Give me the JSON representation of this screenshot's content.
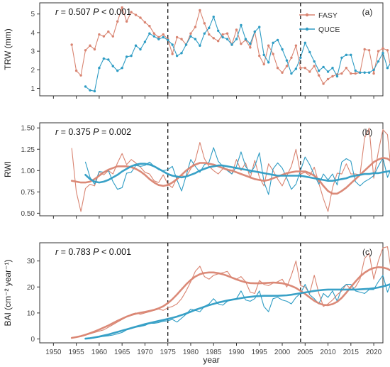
{
  "colors": {
    "FASY": "#D98471",
    "QUCE": "#2E9CC4"
  },
  "legend": [
    {
      "name": "FASY",
      "color": "#D98471"
    },
    {
      "name": "QUCE",
      "color": "#2E9CC4"
    }
  ],
  "xaxis": {
    "label": "year",
    "ticks": [
      "1950",
      "1955",
      "1960",
      "1965",
      "1970",
      "1975",
      "1980",
      "1985",
      "1990",
      "1995",
      "2000",
      "2005",
      "2010",
      "2015",
      "2020"
    ]
  },
  "chart_data": [
    {
      "type": "line",
      "panel": "(a)",
      "ylabel": "TRW (mm)",
      "stat": {
        "r": "0.507",
        "p": "< 0.001"
      },
      "xlim": [
        1947,
        2022
      ],
      "ylim": [
        0.6,
        5.6
      ],
      "yticks": [
        "1",
        "2",
        "3",
        "4",
        "5"
      ],
      "vlines": [
        1975,
        2004
      ],
      "x_start": {
        "FASY": 1954,
        "QUCE": 1957
      },
      "series": [
        {
          "name": "FASY",
          "values": [
            3.35,
            1.95,
            1.7,
            3.05,
            3.3,
            3.1,
            3.9,
            3.8,
            4.05,
            3.8,
            4.6,
            5.35,
            4.6,
            5.1,
            4.95,
            4.8,
            4.55,
            4.35,
            3.95,
            3.75,
            3.9,
            3.65,
            2.85,
            3.75,
            3.65,
            3.35,
            3.95,
            4.3,
            5.2,
            4.5,
            3.9,
            3.7,
            3.55,
            3.9,
            3.95,
            3.35,
            4.15,
            3.4,
            3.6,
            3.2,
            4.05,
            2.75,
            2.3,
            3.3,
            2.85,
            2.1,
            1.85,
            2.2,
            2.65,
            3.3,
            2.1,
            2.1,
            1.9,
            2.2,
            1.7,
            1.25,
            1.5,
            1.65,
            1.75,
            1.8,
            2.1,
            1.8,
            1.8,
            1.85,
            3.1,
            3.05,
            1.8,
            3.0,
            3.15,
            3.05,
            1.7,
            1.7,
            1.95
          ]
        },
        {
          "name": "QUCE",
          "values": [
            1.1,
            0.9,
            0.85,
            2.1,
            2.6,
            2.55,
            2.2,
            1.95,
            2.1,
            2.7,
            2.75,
            3.3,
            3.1,
            3.5,
            3.95,
            3.8,
            3.65,
            3.75,
            3.6,
            3.35,
            2.75,
            2.9,
            3.35,
            3.8,
            3.65,
            3.3,
            3.95,
            4.25,
            4.85,
            4.1,
            3.75,
            3.65,
            3.35,
            3.65,
            4.4,
            3.65,
            3.4,
            4.05,
            4.3,
            2.8,
            2.4,
            3.45,
            3.6,
            3.1,
            2.5,
            1.8,
            2.05,
            2.65,
            3.45,
            2.95,
            2.45,
            1.95,
            2.15,
            1.9,
            2.1,
            1.65,
            2.65,
            2.8,
            2.8,
            1.95,
            1.85,
            1.85,
            1.85,
            2.0,
            2.45,
            2.9,
            2.1,
            2.5,
            2.2,
            1.85,
            2.75,
            2.5,
            2.8,
            2.65,
            2.45,
            2.75
          ]
        }
      ]
    },
    {
      "type": "line",
      "panel": "(b)",
      "ylabel": "RWI",
      "stat": {
        "r": "0.375",
        "p": "= 0.002"
      },
      "xlim": [
        1947,
        2022
      ],
      "ylim": [
        0.47,
        1.56
      ],
      "yticks": [
        "0.50",
        "0.75",
        "1.00",
        "1.25",
        "1.50"
      ],
      "vlines": [
        1975,
        2004
      ],
      "x_start": {
        "FASY": 1954,
        "QUCE": 1957
      },
      "series": [
        {
          "name": "FASY",
          "values": [
            1.26,
            0.75,
            0.52,
            0.79,
            0.84,
            0.82,
            0.98,
            0.95,
            1.0,
            0.96,
            1.09,
            1.2,
            1.07,
            1.13,
            1.09,
            1.04,
            0.98,
            0.96,
            0.88,
            0.86,
            0.95,
            0.84,
            0.8,
            0.92,
            0.94,
            0.93,
            1.02,
            1.12,
            1.33,
            1.14,
            1.05,
            1.0,
            0.96,
            1.02,
            1.02,
            0.96,
            1.13,
            1.0,
            1.09,
            0.91,
            1.12,
            0.92,
            0.82,
            1.08,
            1.0,
            0.9,
            0.82,
            0.94,
            1.05,
            1.25,
            0.96,
            0.98,
            0.94,
            1.04,
            0.85,
            0.67,
            0.52,
            0.8,
            0.97,
            0.96,
            1.08,
            0.96,
            0.96,
            0.95,
            1.38,
            1.5,
            0.91,
            1.22,
            1.48,
            1.42,
            0.88,
            0.93,
            0.84
          ]
        },
        {
          "name": "QUCE",
          "values": [
            1.1,
            0.92,
            0.84,
            0.99,
            0.98,
            1.0,
            0.87,
            0.78,
            0.8,
            0.97,
            0.98,
            1.06,
            1.05,
            1.06,
            1.1,
            1.05,
            1.01,
            1.0,
            1.01,
            1.05,
            0.89,
            0.76,
            0.94,
            1.13,
            1.05,
            0.98,
            1.07,
            1.1,
            1.27,
            1.11,
            1.05,
            1.0,
            0.96,
            1.05,
            1.22,
            1.05,
            0.97,
            1.05,
            1.21,
            0.87,
            0.72,
            1.02,
            1.09,
            1.03,
            0.91,
            0.78,
            0.84,
            1.0,
            1.16,
            1.07,
            0.95,
            0.84,
            0.96,
            0.89,
            0.96,
            0.83,
            1.1,
            1.14,
            1.11,
            0.87,
            0.82,
            0.87,
            0.9,
            0.94,
            1.05,
            1.15,
            0.92,
            1.05,
            0.93,
            0.81,
            1.16,
            1.06,
            1.15,
            1.36,
            1.03,
            1.12
          ]
        },
        {
          "name": "FASY",
          "role": "smoothed",
          "values": [
            0.88,
            0.87,
            0.86,
            0.86,
            0.87,
            0.9,
            0.94,
            0.98,
            1.01,
            1.03,
            1.05,
            1.05,
            1.05,
            1.04,
            1.02,
            0.99,
            0.95,
            0.9,
            0.86,
            0.83,
            0.82,
            0.83,
            0.86,
            0.9,
            0.95,
            1.0,
            1.04,
            1.07,
            1.09,
            1.09,
            1.08,
            1.07,
            1.05,
            1.03,
            1.01,
            1.0,
            0.98,
            0.96,
            0.94,
            0.92,
            0.9,
            0.89,
            0.88,
            0.89,
            0.91,
            0.93,
            0.95,
            0.97,
            0.98,
            0.99,
            0.99,
            0.99,
            0.97,
            0.94,
            0.89,
            0.82,
            0.76,
            0.73,
            0.73,
            0.76,
            0.8,
            0.85,
            0.9,
            0.95,
            1.0,
            1.05,
            1.1,
            1.13,
            1.15,
            1.14,
            1.1,
            1.02,
            0.86
          ]
        },
        {
          "name": "QUCE",
          "role": "smoothed",
          "values": [
            0.95,
            0.9,
            0.87,
            0.86,
            0.87,
            0.89,
            0.92,
            0.95,
            0.99,
            1.02,
            1.05,
            1.07,
            1.08,
            1.08,
            1.07,
            1.05,
            1.02,
            0.99,
            0.96,
            0.94,
            0.93,
            0.92,
            0.93,
            0.95,
            0.97,
            1.0,
            1.02,
            1.04,
            1.05,
            1.06,
            1.06,
            1.05,
            1.04,
            1.03,
            1.02,
            1.01,
            1.0,
            0.99,
            0.98,
            0.97,
            0.96,
            0.95,
            0.94,
            0.94,
            0.94,
            0.94,
            0.94,
            0.94,
            0.93,
            0.92,
            0.91,
            0.9,
            0.89,
            0.88,
            0.88,
            0.89,
            0.9,
            0.91,
            0.93,
            0.94,
            0.95,
            0.96,
            0.96,
            0.97,
            0.97,
            0.98,
            0.99,
            1.0,
            1.01,
            1.02,
            1.04,
            1.06,
            1.08,
            1.1,
            1.12,
            1.14
          ]
        }
      ]
    },
    {
      "type": "line",
      "panel": "(c)",
      "ylabel": "BAI (cm⁻² year⁻¹)",
      "stat": {
        "r": "0.783",
        "p": "< 0.001"
      },
      "xlim": [
        1947,
        2022
      ],
      "ylim": [
        -1.5,
        37
      ],
      "yticks": [
        "0",
        "10",
        "20",
        "30"
      ],
      "vlines": [
        1975,
        2004
      ],
      "x_start": {
        "FASY": 1954,
        "QUCE": 1957
      },
      "series": [
        {
          "name": "FASY",
          "values": [
            0.5,
            0.8,
            1.0,
            1.5,
            2.0,
            2.5,
            3.0,
            3.5,
            4.5,
            5.5,
            6.5,
            7.5,
            8.5,
            9.5,
            10.0,
            9.5,
            10.0,
            10.5,
            11.0,
            11.5,
            11.0,
            12.0,
            12.5,
            13.5,
            15.5,
            18.5,
            22.0,
            26.0,
            28.0,
            24.0,
            23.0,
            24.5,
            25.0,
            25.5,
            26.0,
            23.5,
            23.0,
            24.0,
            22.0,
            18.0,
            17.5,
            22.5,
            21.0,
            20.5,
            21.5,
            22.0,
            23.0,
            20.0,
            24.5,
            30.0,
            20.5,
            20.0,
            17.5,
            24.5,
            17.5,
            12.5,
            13.5,
            15.0,
            17.0,
            18.5,
            21.0,
            19.0,
            20.0,
            23.0,
            31.0,
            33.0,
            23.0,
            30.0,
            35.0,
            35.5,
            24.0,
            21.0,
            22.0
          ]
        },
        {
          "name": "QUCE",
          "values": [
            0.3,
            0.2,
            0.4,
            0.8,
            1.0,
            1.2,
            1.5,
            2.0,
            2.5,
            3.5,
            4.0,
            4.5,
            4.8,
            5.2,
            6.0,
            6.0,
            6.3,
            6.8,
            7.0,
            7.5,
            6.5,
            8.0,
            9.5,
            11.5,
            11.0,
            10.5,
            12.5,
            13.5,
            15.5,
            13.5,
            13.0,
            14.5,
            15.0,
            15.5,
            18.5,
            15.0,
            14.5,
            15.5,
            18.5,
            12.5,
            10.5,
            15.5,
            16.0,
            15.0,
            14.5,
            13.5,
            16.0,
            17.5,
            21.0,
            17.0,
            15.5,
            13.5,
            17.5,
            16.0,
            18.5,
            14.5,
            19.5,
            21.0,
            21.0,
            18.5,
            18.0,
            17.5,
            19.0,
            19.0,
            22.0,
            24.5,
            18.0,
            22.5,
            20.5,
            18.0,
            25.5,
            22.0,
            29.0,
            28.0,
            24.5,
            25.0
          ]
        },
        {
          "name": "FASY",
          "role": "smoothed",
          "values": [
            0.4,
            0.7,
            1.1,
            1.6,
            2.2,
            2.9,
            3.6,
            4.4,
            5.2,
            6.1,
            7.0,
            7.8,
            8.6,
            9.2,
            9.7,
            10.1,
            10.4,
            10.8,
            11.2,
            11.8,
            12.6,
            13.8,
            15.3,
            17.1,
            19.1,
            21.0,
            22.7,
            24.0,
            24.9,
            25.4,
            25.6,
            25.6,
            25.3,
            24.9,
            24.3,
            23.6,
            22.9,
            22.3,
            21.8,
            21.5,
            21.4,
            21.4,
            21.5,
            21.6,
            21.7,
            21.6,
            21.4,
            21.0,
            20.4,
            19.6,
            18.5,
            17.3,
            16.0,
            14.7,
            13.7,
            13.1,
            13.0,
            13.4,
            14.3,
            15.8,
            17.8,
            20.0,
            22.1,
            24.0,
            25.5,
            26.6,
            27.3,
            27.6,
            27.5,
            27.0,
            26.0,
            24.4,
            22.5
          ]
        },
        {
          "name": "QUCE",
          "role": "smoothed",
          "values": [
            0.1,
            0.3,
            0.6,
            0.9,
            1.3,
            1.7,
            2.2,
            2.7,
            3.2,
            3.7,
            4.2,
            4.7,
            5.2,
            5.7,
            6.1,
            6.5,
            6.9,
            7.3,
            7.7,
            8.1,
            8.6,
            9.2,
            9.8,
            10.5,
            11.2,
            11.8,
            12.4,
            13.0,
            13.5,
            14.0,
            14.4,
            14.8,
            15.1,
            15.4,
            15.7,
            16.0,
            16.2,
            16.4,
            16.5,
            16.6,
            16.6,
            16.6,
            16.6,
            16.7,
            16.8,
            17.0,
            17.3,
            17.6,
            17.9,
            18.2,
            18.5,
            18.7,
            18.9,
            19.0,
            19.0,
            19.0,
            19.0,
            19.0,
            19.0,
            19.0,
            19.1,
            19.2,
            19.3,
            19.5,
            19.8,
            20.2,
            20.7,
            21.3,
            22.0,
            22.8,
            23.7,
            24.7,
            25.8
          ]
        }
      ]
    }
  ]
}
